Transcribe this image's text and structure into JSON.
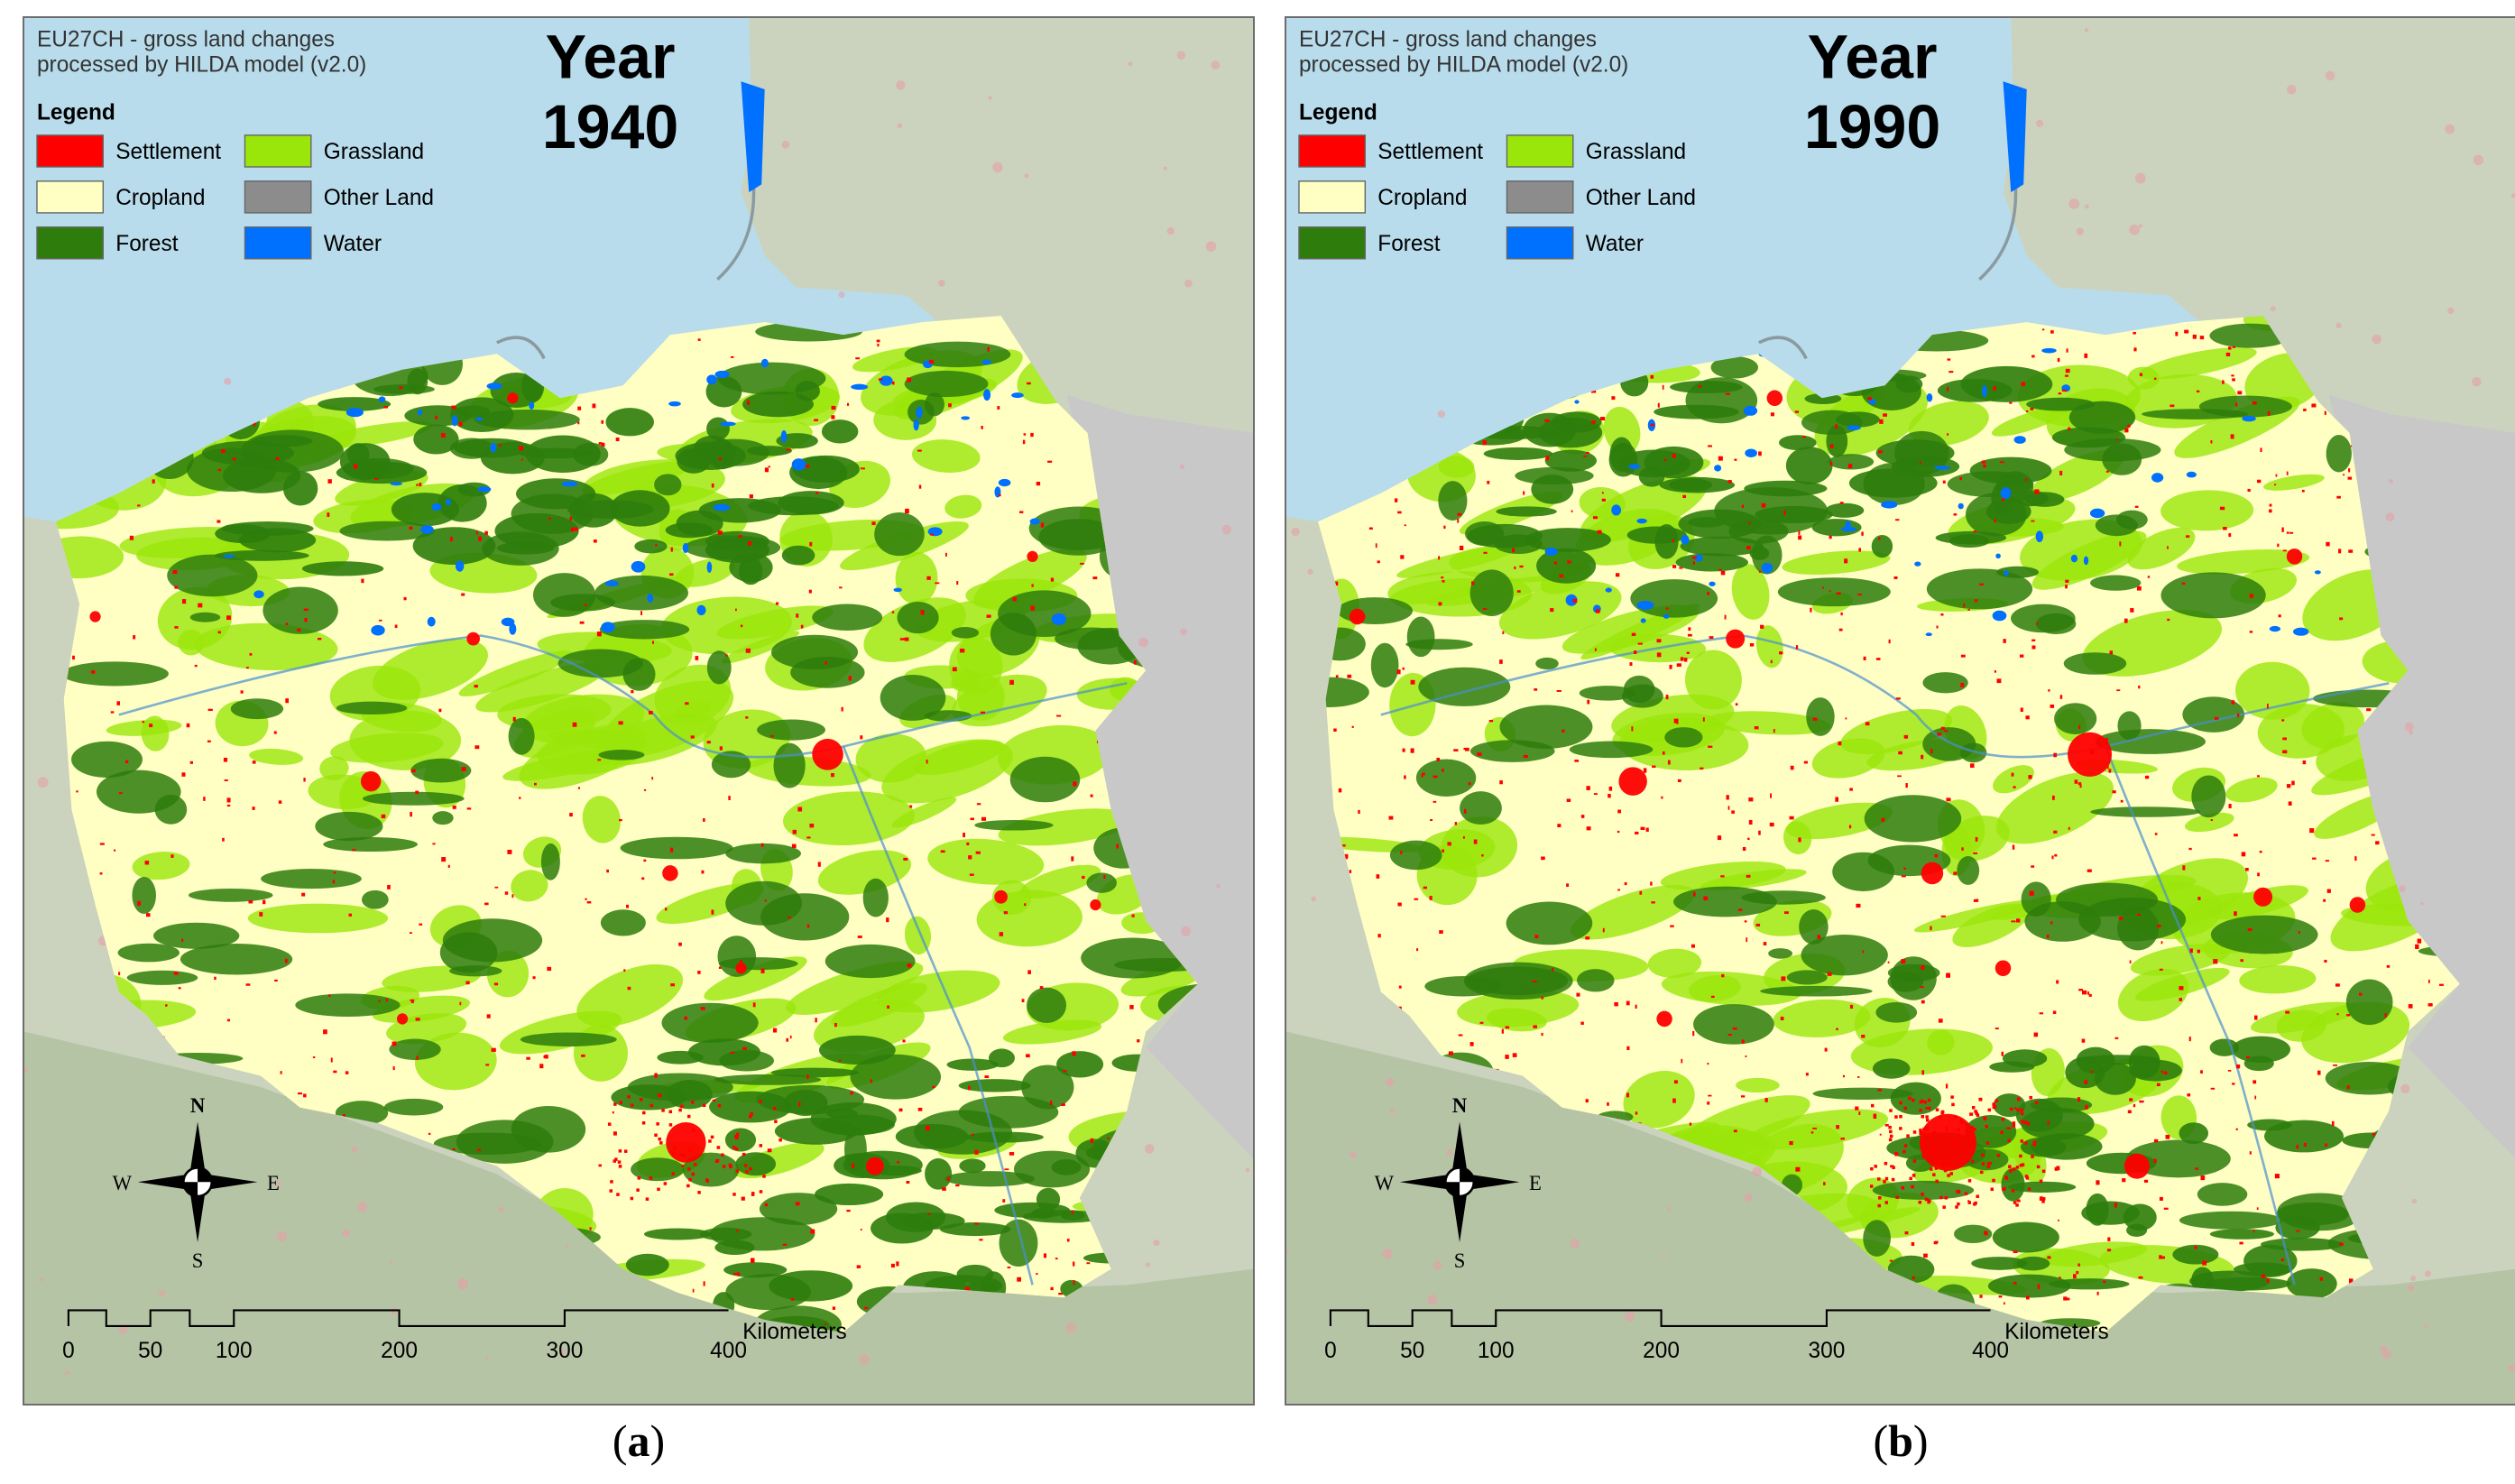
{
  "common": {
    "source_line1": "EU27CH - gross land changes",
    "source_line2": "processed by HILDA model (v2.0)",
    "legend_title": "Legend",
    "legend_items": [
      {
        "label": "Settlement",
        "color": "#ff0000"
      },
      {
        "label": "Grassland",
        "color": "#9be60a"
      },
      {
        "label": "Cropland",
        "color": "#ffffc4"
      },
      {
        "label": "Other Land",
        "color": "#8c8c8c"
      },
      {
        "label": "Forest",
        "color": "#2e7d0c"
      },
      {
        "label": "Water",
        "color": "#0070ff"
      }
    ],
    "compass": {
      "n": "N",
      "s": "S",
      "e": "E",
      "w": "W"
    },
    "scale": {
      "ticks": [
        "0",
        "50",
        "100",
        "200",
        "300",
        "400"
      ],
      "unit": "Kilometers"
    },
    "colors": {
      "sea": "#b8dcec",
      "neighbor_land": "#cbd3be",
      "other_land": "#c8c8c8",
      "settlement": "#ff0000",
      "cropland": "#ffffc4",
      "grassland": "#9be60a",
      "forest": "#2e7d0c",
      "water": "#0070ff"
    }
  },
  "panels": [
    {
      "year_line1": "Year",
      "year_line2": "1940",
      "caption_open": "(",
      "caption_letter": "a",
      "caption_close": ")",
      "settlement_level": 0.35
    },
    {
      "year_line1": "Year",
      "year_line2": "1990",
      "caption_open": "(",
      "caption_letter": "b",
      "caption_close": ")",
      "settlement_level": 1.0
    }
  ]
}
